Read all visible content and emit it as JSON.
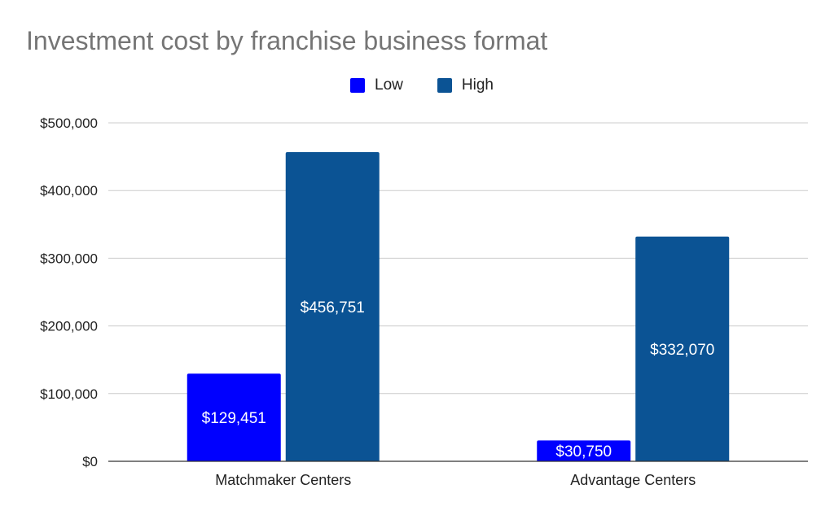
{
  "chart_data": {
    "type": "bar",
    "title": "Investment cost by franchise business format",
    "categories": [
      "Matchmaker Centers",
      "Advantage Centers"
    ],
    "series": [
      {
        "name": "Low",
        "color": "#0000ff",
        "values": [
          129451,
          30750
        ],
        "labels": [
          "$129,451",
          "$30,750"
        ]
      },
      {
        "name": "High",
        "color": "#0b5394",
        "values": [
          456751,
          332070
        ],
        "labels": [
          "$456,751",
          "$332,070"
        ]
      }
    ],
    "y_ticks": [
      0,
      100000,
      200000,
      300000,
      400000,
      500000
    ],
    "y_tick_labels": [
      "$0",
      "$100,000",
      "$200,000",
      "$300,000",
      "$400,000",
      "$500,000"
    ],
    "ylim": [
      0,
      500000
    ],
    "grid": true,
    "legend_position": "top-center",
    "xlabel": "",
    "ylabel": ""
  }
}
